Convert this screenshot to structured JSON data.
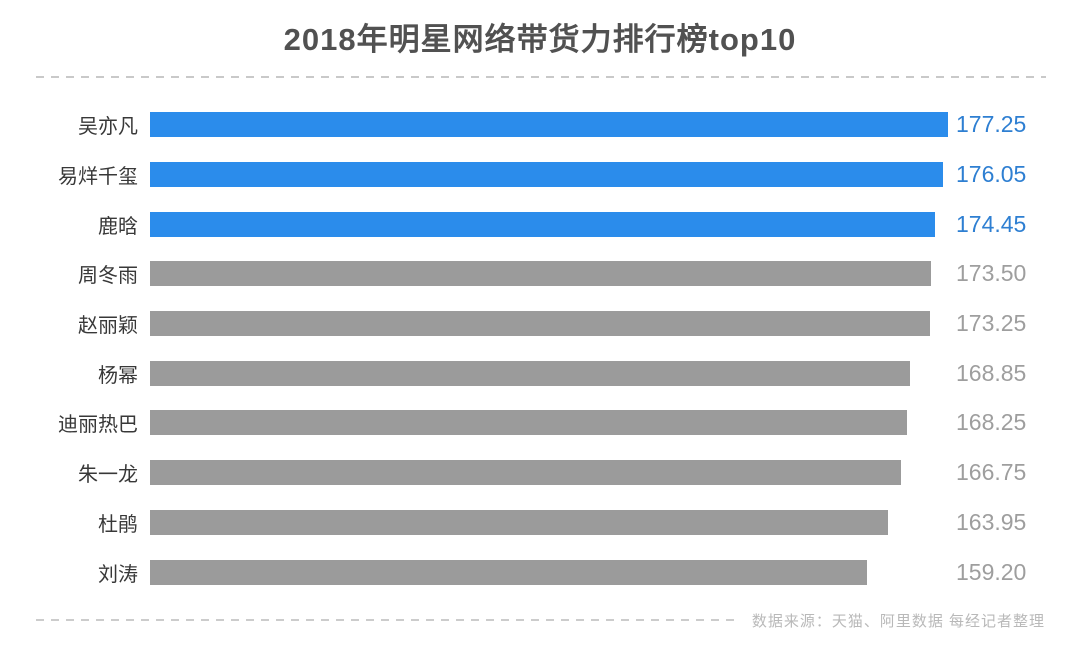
{
  "title": "2018年明星网络带货力排行榜top10",
  "footer": {
    "source_text": "数据来源：天猫、阿里数据 每经记者整理"
  },
  "chart_data": {
    "type": "bar",
    "orientation": "horizontal",
    "title": "2018年明星网络带货力排行榜top10",
    "categories": [
      "吴亦凡",
      "易烊千玺",
      "鹿晗",
      "周冬雨",
      "赵丽颖",
      "杨幂",
      "迪丽热巴",
      "朱一龙",
      "杜鹃",
      "刘涛"
    ],
    "values": [
      177.25,
      176.05,
      174.45,
      173.5,
      173.25,
      168.85,
      168.25,
      166.75,
      163.95,
      159.2
    ],
    "value_labels": [
      "177.25",
      "176.05",
      "174.45",
      "173.50",
      "173.25",
      "168.85",
      "168.25",
      "166.75",
      "163.95",
      "159.20"
    ],
    "xlim": [
      0,
      177.25
    ],
    "grid": false,
    "axis_visible": false,
    "value_label_position": "right-of-bar",
    "highlighted_count": 3,
    "colors": {
      "highlight_bar": "#2b8ceb",
      "highlight_value_text": "#2e7fd2",
      "default_bar": "#9b9b9b",
      "default_value_text": "#9e9e9e",
      "title_text": "#515151",
      "category_text": "#383838",
      "footer_text": "#b9b9b9",
      "dashed_rule": "#c9c9c9"
    }
  }
}
